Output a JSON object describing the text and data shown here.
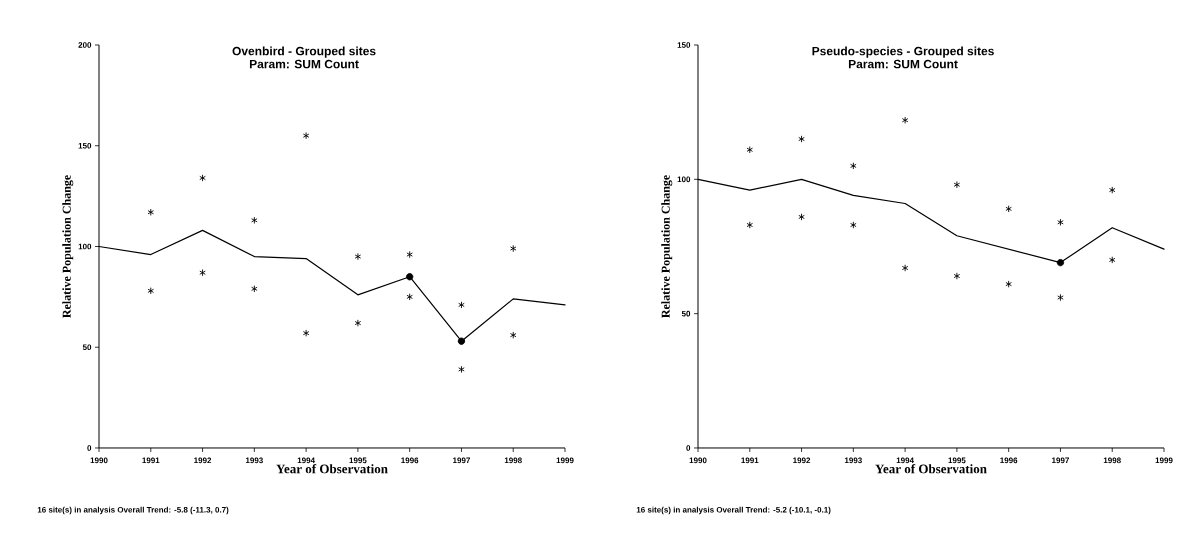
{
  "chart_data": [
    {
      "type": "line",
      "title": "Ovenbird - Grouped sites",
      "subtitle": "Param: SUM Count",
      "xlabel": "Year of Observation",
      "ylabel": "Relative Population Change",
      "x": [
        1990,
        1991,
        1992,
        1993,
        1994,
        1995,
        1996,
        1997,
        1998,
        1999
      ],
      "xlim": [
        1990,
        1999
      ],
      "ylim": [
        0,
        200
      ],
      "xticks": [
        1990,
        1991,
        1992,
        1993,
        1994,
        1995,
        1996,
        1997,
        1998,
        1999
      ],
      "yticks": [
        0,
        50,
        100,
        150,
        200
      ],
      "series": [
        {
          "type": "line",
          "color": "#000000",
          "marker": "none",
          "values": [
            100,
            96,
            108,
            95,
            94,
            76,
            85,
            53,
            74,
            71
          ]
        },
        {
          "type": "scatter",
          "color": "#000000",
          "marker": "cross",
          "values": [
            null,
            117,
            134,
            113,
            155,
            95,
            96,
            71,
            99,
            null
          ]
        },
        {
          "type": "scatter",
          "color": "#000000",
          "marker": "cross",
          "values": [
            null,
            78,
            87,
            79,
            57,
            62,
            75,
            39,
            56,
            null
          ]
        },
        {
          "type": "scatter",
          "color": "#000000",
          "marker": "circle",
          "values": [
            null,
            null,
            null,
            null,
            null,
            null,
            85,
            53,
            null,
            null
          ]
        }
      ],
      "annotations": [
        "16 site(s) in analysis   Overall Trend: -5.8  (-11.3, 0.7)"
      ]
    },
    {
      "type": "line",
      "title": "Pseudo-species - Grouped sites",
      "subtitle": "Param: SUM Count",
      "xlabel": "Year of Observation",
      "ylabel": "Relative Population Change",
      "x": [
        1990,
        1991,
        1992,
        1993,
        1994,
        1995,
        1996,
        1997,
        1998,
        1999
      ],
      "xlim": [
        1990,
        1999
      ],
      "ylim": [
        0,
        150
      ],
      "xticks": [
        1990,
        1991,
        1992,
        1993,
        1994,
        1995,
        1996,
        1997,
        1998,
        1999
      ],
      "yticks": [
        0,
        50,
        100,
        150
      ],
      "series": [
        {
          "type": "line",
          "color": "#000000",
          "marker": "none",
          "values": [
            100,
            96,
            100,
            94,
            91,
            79,
            74,
            69,
            82,
            74
          ]
        },
        {
          "type": "scatter",
          "color": "#000000",
          "marker": "cross",
          "values": [
            null,
            111,
            115,
            105,
            122,
            98,
            89,
            84,
            96,
            null
          ]
        },
        {
          "type": "scatter",
          "color": "#000000",
          "marker": "cross",
          "values": [
            null,
            83,
            86,
            83,
            67,
            64,
            61,
            56,
            70,
            null
          ]
        },
        {
          "type": "scatter",
          "color": "#000000",
          "marker": "circle",
          "values": [
            null,
            null,
            null,
            null,
            null,
            null,
            null,
            69,
            null,
            null
          ]
        }
      ],
      "annotations": [
        "16 site(s) in analysis   Overall Trend: -5.2  (-10.1, -0.1)"
      ]
    }
  ]
}
